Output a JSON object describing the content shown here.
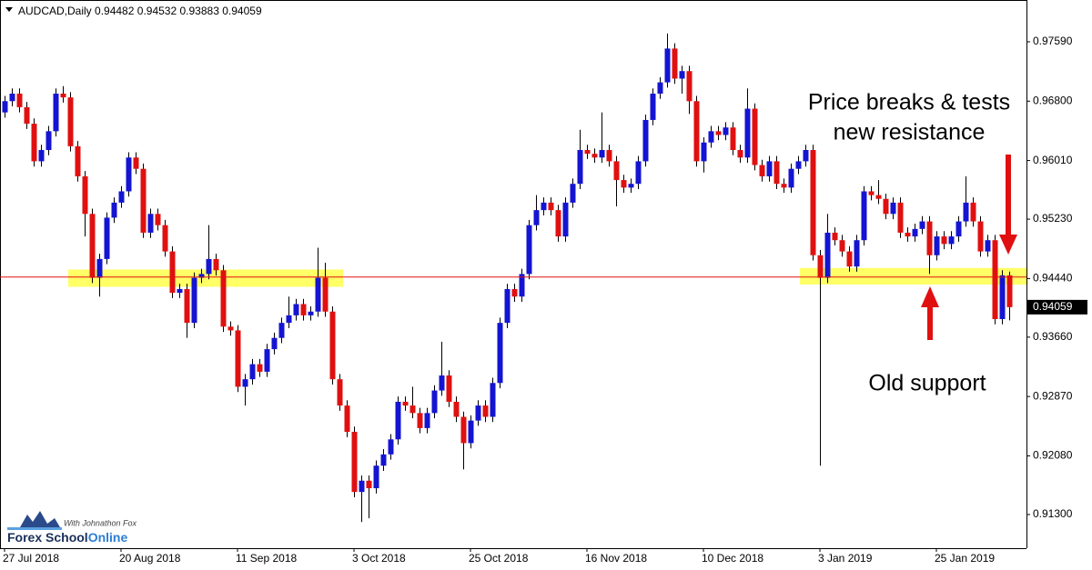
{
  "chart_data": {
    "type": "candlestick",
    "symbol": "AUDCAD,Daily",
    "open": [
      0.9665,
      0.968,
      0.969,
      0.9672,
      0.965,
      0.96,
      0.9615,
      0.964,
      0.969,
      0.9685,
      0.962,
      0.958,
      0.953,
      0.9445,
      0.947,
      0.9525,
      0.9545,
      0.956,
      0.9605,
      0.959,
      0.9505,
      0.953,
      0.9515,
      0.948,
      0.9425,
      0.943,
      0.9385,
      0.9445,
      0.945,
      0.947,
      0.9455,
      0.938,
      0.9375,
      0.93,
      0.931,
      0.933,
      0.932,
      0.935,
      0.9365,
      0.9385,
      0.9395,
      0.941,
      0.9395,
      0.94,
      0.9445,
      0.94,
      0.931,
      0.9275,
      0.924,
      0.916,
      0.9175,
      0.9165,
      0.9195,
      0.921,
      0.923,
      0.928,
      0.9275,
      0.9265,
      0.9245,
      0.9265,
      0.9295,
      0.9315,
      0.928,
      0.926,
      0.9225,
      0.9255,
      0.9275,
      0.926,
      0.9305,
      0.9385,
      0.943,
      0.942,
      0.945,
      0.9515,
      0.9535,
      0.9545,
      0.9535,
      0.95,
      0.9545,
      0.957,
      0.9615,
      0.961,
      0.9605,
      0.9615,
      0.96,
      0.9575,
      0.9565,
      0.957,
      0.96,
      0.9655,
      0.969,
      0.9705,
      0.975,
      0.971,
      0.972,
      0.968,
      0.96,
      0.9625,
      0.964,
      0.9635,
      0.9645,
      0.9615,
      0.9605,
      0.967,
      0.9595,
      0.958,
      0.96,
      0.957,
      0.9565,
      0.959,
      0.96,
      0.9615,
      0.9475,
      0.9445,
      0.9505,
      0.9495,
      0.948,
      0.946,
      0.9495,
      0.956,
      0.9555,
      0.955,
      0.953,
      0.9545,
      0.9505,
      0.95,
      0.951,
      0.952,
      0.9475,
      0.95,
      0.949,
      0.95,
      0.952,
      0.9545,
      0.952,
      0.948,
      0.9495,
      0.939,
      0.94482
    ],
    "high": [
      0.9687,
      0.9697,
      0.9697,
      0.9679,
      0.9657,
      0.9622,
      0.9647,
      0.9697,
      0.97,
      0.9692,
      0.9627,
      0.9587,
      0.9537,
      0.9477,
      0.9532,
      0.9552,
      0.9567,
      0.9612,
      0.9612,
      0.9597,
      0.9537,
      0.9537,
      0.9522,
      0.9487,
      0.9437,
      0.9437,
      0.9452,
      0.9457,
      0.9515,
      0.9477,
      0.9462,
      0.9387,
      0.9382,
      0.9317,
      0.9337,
      0.9337,
      0.9357,
      0.9372,
      0.9392,
      0.942,
      0.9417,
      0.9417,
      0.9407,
      0.9485,
      0.9465,
      0.9407,
      0.9317,
      0.9282,
      0.9247,
      0.9182,
      0.9182,
      0.9202,
      0.9217,
      0.9237,
      0.9287,
      0.9287,
      0.93,
      0.9272,
      0.9272,
      0.9302,
      0.936,
      0.9322,
      0.9287,
      0.9267,
      0.9262,
      0.9282,
      0.9282,
      0.9312,
      0.9392,
      0.9437,
      0.9437,
      0.9457,
      0.9522,
      0.9555,
      0.9552,
      0.9552,
      0.9542,
      0.9552,
      0.9577,
      0.9642,
      0.9622,
      0.9617,
      0.9665,
      0.9622,
      0.9607,
      0.9582,
      0.9577,
      0.9607,
      0.9662,
      0.9697,
      0.9712,
      0.977,
      0.9757,
      0.9727,
      0.9727,
      0.9687,
      0.9632,
      0.9647,
      0.9647,
      0.9652,
      0.9652,
      0.9622,
      0.9697,
      0.9677,
      0.9602,
      0.9607,
      0.9607,
      0.9577,
      0.9597,
      0.9607,
      0.9622,
      0.9622,
      0.9482,
      0.953,
      0.9512,
      0.9502,
      0.9487,
      0.9502,
      0.9567,
      0.9567,
      0.9575,
      0.9557,
      0.9552,
      0.9552,
      0.9512,
      0.9517,
      0.9527,
      0.9527,
      0.9507,
      0.9507,
      0.9507,
      0.9527,
      0.958,
      0.9552,
      0.9527,
      0.9502,
      0.9502,
      0.9455,
      0.94532
    ],
    "low": [
      0.9658,
      0.9673,
      0.9665,
      0.9643,
      0.9593,
      0.9593,
      0.9608,
      0.9633,
      0.9678,
      0.9613,
      0.9573,
      0.95,
      0.9438,
      0.942,
      0.9463,
      0.9518,
      0.9538,
      0.9553,
      0.9583,
      0.9498,
      0.9498,
      0.9508,
      0.9473,
      0.9418,
      0.9418,
      0.9365,
      0.9378,
      0.9438,
      0.9443,
      0.9448,
      0.9373,
      0.9368,
      0.9293,
      0.9275,
      0.9303,
      0.9313,
      0.9313,
      0.9343,
      0.9358,
      0.9378,
      0.9388,
      0.9388,
      0.9388,
      0.9393,
      0.9393,
      0.9303,
      0.9268,
      0.9233,
      0.9153,
      0.912,
      0.9125,
      0.9158,
      0.9188,
      0.9203,
      0.9223,
      0.9268,
      0.9258,
      0.9238,
      0.9238,
      0.9258,
      0.9288,
      0.9273,
      0.9253,
      0.919,
      0.9218,
      0.9248,
      0.9253,
      0.9253,
      0.9298,
      0.9378,
      0.9413,
      0.9413,
      0.9443,
      0.9508,
      0.9528,
      0.9528,
      0.9493,
      0.9493,
      0.9538,
      0.9563,
      0.9603,
      0.9598,
      0.9598,
      0.9593,
      0.954,
      0.9558,
      0.9558,
      0.9563,
      0.9593,
      0.9648,
      0.9683,
      0.9698,
      0.9703,
      0.969,
      0.9663,
      0.9593,
      0.9585,
      0.9618,
      0.9628,
      0.9628,
      0.9608,
      0.9598,
      0.9598,
      0.9588,
      0.9573,
      0.9573,
      0.9563,
      0.9558,
      0.9558,
      0.9583,
      0.9593,
      0.9468,
      0.9195,
      0.9438,
      0.9488,
      0.9473,
      0.9453,
      0.9453,
      0.9488,
      0.9548,
      0.9543,
      0.9523,
      0.9523,
      0.9498,
      0.9493,
      0.9493,
      0.9503,
      0.945,
      0.9468,
      0.9483,
      0.9483,
      0.9493,
      0.9513,
      0.9513,
      0.9473,
      0.9473,
      0.9383,
      0.9383,
      0.93883
    ],
    "close": [
      0.968,
      0.969,
      0.9672,
      0.965,
      0.96,
      0.9615,
      0.964,
      0.969,
      0.9685,
      0.962,
      0.958,
      0.953,
      0.9445,
      0.947,
      0.9525,
      0.9545,
      0.956,
      0.9605,
      0.959,
      0.9505,
      0.953,
      0.9515,
      0.948,
      0.9425,
      0.943,
      0.9385,
      0.9445,
      0.945,
      0.947,
      0.9455,
      0.938,
      0.9375,
      0.93,
      0.931,
      0.933,
      0.932,
      0.935,
      0.9365,
      0.9385,
      0.9395,
      0.941,
      0.9395,
      0.94,
      0.9445,
      0.94,
      0.931,
      0.9275,
      0.924,
      0.916,
      0.9175,
      0.9165,
      0.9195,
      0.921,
      0.923,
      0.928,
      0.9275,
      0.9265,
      0.9245,
      0.9265,
      0.9295,
      0.9315,
      0.928,
      0.926,
      0.9225,
      0.9255,
      0.9275,
      0.926,
      0.9305,
      0.9385,
      0.943,
      0.942,
      0.945,
      0.9515,
      0.9535,
      0.9545,
      0.9535,
      0.95,
      0.9545,
      0.957,
      0.9615,
      0.961,
      0.9605,
      0.9615,
      0.96,
      0.9575,
      0.9565,
      0.957,
      0.96,
      0.9655,
      0.969,
      0.9705,
      0.975,
      0.971,
      0.972,
      0.968,
      0.96,
      0.9625,
      0.964,
      0.9635,
      0.9645,
      0.9615,
      0.9605,
      0.967,
      0.9595,
      0.958,
      0.96,
      0.957,
      0.9565,
      0.959,
      0.96,
      0.9615,
      0.9475,
      0.9445,
      0.9505,
      0.9495,
      0.948,
      0.946,
      0.9495,
      0.956,
      0.9555,
      0.955,
      0.953,
      0.9545,
      0.9505,
      0.95,
      0.951,
      0.952,
      0.9475,
      0.95,
      0.949,
      0.95,
      0.952,
      0.9545,
      0.952,
      0.948,
      0.9495,
      0.939,
      0.94482,
      0.94059
    ],
    "up_color": "#1414d2",
    "down_color": "#e01010",
    "xlim": [
      -0.625,
      140.375
    ],
    "xticks": [
      {
        "value": 0,
        "label": "27 Jul 2018"
      },
      {
        "value": 16,
        "label": "20 Aug 2018"
      },
      {
        "value": 32,
        "label": "11 Sep 2018"
      },
      {
        "value": 48,
        "label": "3 Oct 2018"
      },
      {
        "value": 64,
        "label": "25 Oct 2018"
      },
      {
        "value": 80,
        "label": "16 Nov 2018"
      },
      {
        "value": 96,
        "label": "10 Dec 2018"
      },
      {
        "value": 112,
        "label": "3 Jan 2019"
      },
      {
        "value": 128,
        "label": "25 Jan 2019"
      }
    ],
    "ylim": [
      0.90852,
      0.98146
    ],
    "yticks": [
      {
        "value": 0.9759,
        "label": "0.97590"
      },
      {
        "value": 0.968,
        "label": "0.96800"
      },
      {
        "value": 0.9601,
        "label": "0.96010"
      },
      {
        "value": 0.9523,
        "label": "0.95230"
      },
      {
        "value": 0.9444,
        "label": "0.94440"
      },
      {
        "value": 0.9366,
        "label": "0.93660"
      },
      {
        "value": 0.9287,
        "label": "0.92870"
      },
      {
        "value": 0.9208,
        "label": "0.92080"
      },
      {
        "value": 0.913,
        "label": "0.91300"
      }
    ],
    "level_line": {
      "value": 0.9446,
      "color": "#e01010"
    },
    "zones": [
      {
        "start": 8.75,
        "end": 46.5,
        "low": 0.9433,
        "high": 0.9456
      },
      {
        "start": 109.25,
        "end": 140.375,
        "low": 0.9436,
        "high": 0.9458
      }
    ],
    "zone_color": "#ffff66",
    "annotations": [
      "Price breaks & tests",
      "new resistance",
      "Old support"
    ],
    "annotation_color": "#e01010"
  },
  "logo": {
    "tagline": "With Johnathon Fox",
    "name": "Forex School",
    "name_end": "Online"
  }
}
